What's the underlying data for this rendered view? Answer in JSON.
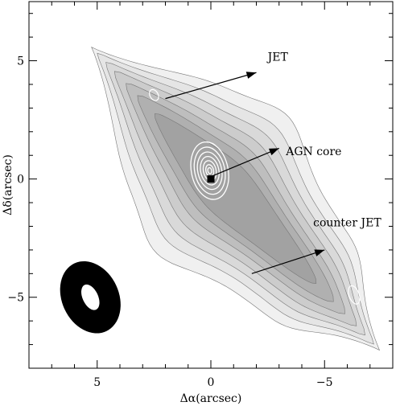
{
  "chart_data": {
    "type": "contour",
    "xlabel": "Δα(arcsec)",
    "ylabel": "Δδ(arcsec)",
    "xlim": [
      8.0,
      -8.0
    ],
    "ylim": [
      -8.0,
      7.5
    ],
    "x_inverted": true,
    "x_ticks": [
      {
        "value": 5,
        "label": "5"
      },
      {
        "value": 0,
        "label": "0"
      },
      {
        "value": -5,
        "label": "−5"
      }
    ],
    "y_ticks": [
      {
        "value": 5,
        "label": "5"
      },
      {
        "value": 0,
        "label": "0"
      },
      {
        "value": -5,
        "label": "−5"
      }
    ],
    "radio_contour_levels": 7,
    "radio_contour_color": "#777777",
    "xray_contours_color": "#ffffff",
    "core_marker": {
      "x": 0,
      "y": 0,
      "shape": "filled-square",
      "color": "#000000"
    },
    "beam": {
      "x": 5.3,
      "y": -5.0,
      "major_arcsec": 3.3,
      "minor_arcsec": 2.5,
      "pa_deg": 25,
      "color": "#000000"
    },
    "annotations": [
      {
        "text": "JET",
        "x": -2.5,
        "y": 5.0,
        "arrow_from": [
          2.0,
          3.4
        ],
        "arrow_to": [
          -2.0,
          4.5
        ]
      },
      {
        "text": "AGN core",
        "x": -3.3,
        "y": 1.0,
        "arrow_from": [
          0,
          0.1
        ],
        "arrow_to": [
          -3.0,
          1.3
        ]
      },
      {
        "text": "counter JET",
        "x": -4.5,
        "y": -2.0,
        "arrow_from": [
          -1.8,
          -4.0
        ],
        "arrow_to": [
          -5.0,
          -3.0
        ]
      }
    ]
  }
}
